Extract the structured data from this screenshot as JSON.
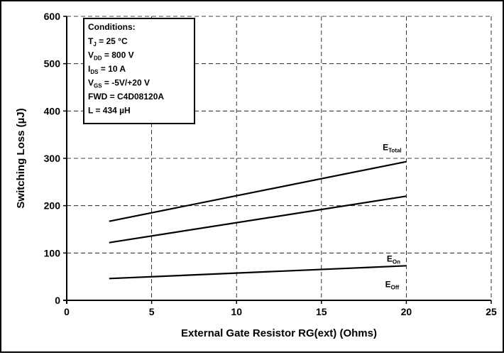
{
  "chart_data": {
    "type": "line",
    "xlabel": "External Gate Resistor RG(ext) (Ohms)",
    "ylabel": "Switching Loss (µJ)",
    "xlim": [
      0,
      25
    ],
    "ylim": [
      0,
      600
    ],
    "x_ticks": [
      0,
      5,
      10,
      15,
      20,
      25
    ],
    "y_ticks": [
      0,
      100,
      200,
      300,
      400,
      500,
      600
    ],
    "grid": true,
    "series": [
      {
        "name": "E_Total",
        "label_main": "E",
        "label_sub": "Total",
        "x": [
          2.5,
          20
        ],
        "values": [
          167,
          293
        ]
      },
      {
        "name": "E_On",
        "label_main": "E",
        "label_sub": "On",
        "x": [
          2.5,
          20
        ],
        "values": [
          122,
          220
        ]
      },
      {
        "name": "E_Off",
        "label_main": "E",
        "label_sub": "Off",
        "x": [
          2.5,
          20
        ],
        "values": [
          46,
          73
        ]
      }
    ],
    "conditions": {
      "title": "Conditions:",
      "lines": [
        {
          "main": "T",
          "sub": "J",
          "rest": " = 25 °C"
        },
        {
          "main": "V",
          "sub": "DD",
          "rest": " = 800 V"
        },
        {
          "main": "I",
          "sub": "DS",
          "rest": " = 10 A"
        },
        {
          "main": "V",
          "sub": "GS",
          "rest": " = -5V/+20 V"
        },
        {
          "main": "FWD = C4D08120A",
          "sub": "",
          "rest": ""
        },
        {
          "main": "L = 434 µH",
          "sub": "",
          "rest": ""
        }
      ]
    }
  }
}
